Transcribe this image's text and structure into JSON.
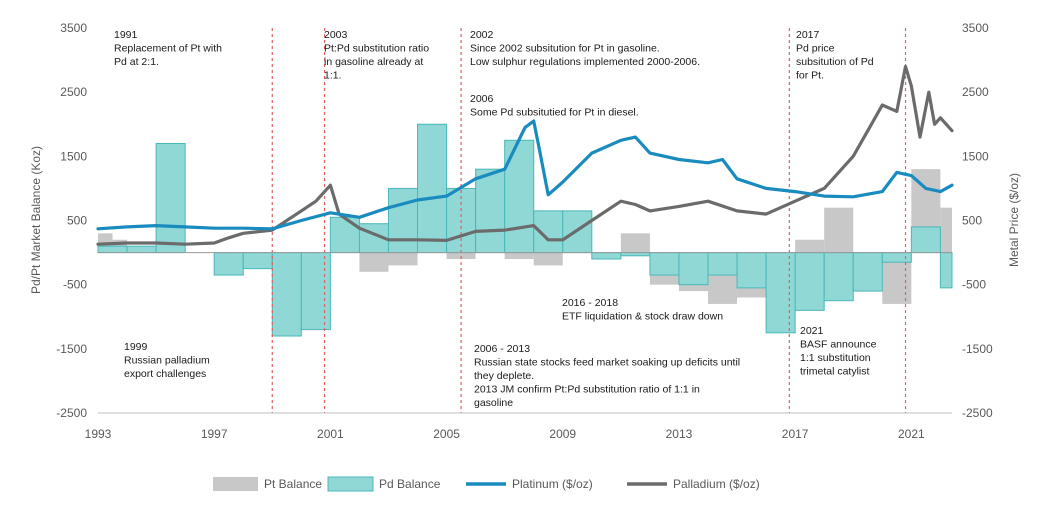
{
  "chart_data": {
    "type": "bar+line",
    "title": "",
    "xlabel": "",
    "ylabel_left": "Pd/Pt Market Balance (Koz)",
    "ylabel_right": "Metal Price ($/oz)",
    "x_range": [
      1993,
      2022.4
    ],
    "x_ticks": [
      "1993",
      "1997",
      "2001",
      "2005",
      "2009",
      "2013",
      "2017",
      "2021"
    ],
    "ylim_left": [
      -2500,
      3500
    ],
    "ylim_right": [
      -2500,
      3500
    ],
    "y_ticks_left": [
      "3500",
      "2500",
      "1500",
      "500",
      "-500",
      "-1500",
      "-2500"
    ],
    "y_ticks_right": [
      "3500",
      "2500",
      "1500",
      "500",
      "-500",
      "-1500",
      "-2500"
    ],
    "colors": {
      "pt_balance": "#c8c8c8",
      "pd_balance": "#8fd8d6",
      "pd_balance_edge": "#4ab8b8",
      "platinum": "#1a8bbf",
      "palladium": "#6b6b6b",
      "event_line": "#e06060"
    },
    "event_lines_x": [
      1999,
      2000.8,
      2005.5,
      2016.8,
      2020.8
    ],
    "legend": {
      "placement": "bottom",
      "items": [
        {
          "label": "Pt Balance",
          "kind": "area"
        },
        {
          "label": "Pd Balance",
          "kind": "area"
        },
        {
          "label": "Platinum ($/oz)",
          "kind": "line"
        },
        {
          "label": "Palladium ($/oz)",
          "kind": "line"
        }
      ]
    },
    "series": [
      {
        "name": "Pt Balance",
        "kind": "step-area",
        "x": [
          1993,
          1993.5,
          1994,
          1995,
          1996,
          1997,
          1998,
          1999,
          2000,
          2001,
          2002,
          2003,
          2004,
          2005,
          2006,
          2007,
          2008,
          2009,
          2010,
          2011,
          2012,
          2013,
          2014,
          2015,
          2016,
          2017,
          2018,
          2019,
          2020,
          2021,
          2022
        ],
        "values": [
          300,
          200,
          0,
          0,
          0,
          -100,
          -150,
          -200,
          0,
          300,
          -300,
          -200,
          300,
          -100,
          150,
          -100,
          -200,
          300,
          0,
          300,
          -500,
          -600,
          -800,
          -700,
          -400,
          200,
          700,
          -100,
          -800,
          1300,
          700
        ]
      },
      {
        "name": "Pd Balance",
        "kind": "step-area",
        "x": [
          1993,
          1994,
          1995,
          1996,
          1997,
          1998,
          1999,
          2000,
          2001,
          2002,
          2003,
          2004,
          2005,
          2006,
          2007,
          2008,
          2009,
          2010,
          2011,
          2012,
          2013,
          2014,
          2015,
          2016,
          2017,
          2018,
          2019,
          2020,
          2021,
          2022
        ],
        "values": [
          100,
          100,
          1700,
          0,
          -350,
          -250,
          -1300,
          -1200,
          550,
          450,
          1000,
          2000,
          1000,
          1300,
          1750,
          650,
          650,
          -100,
          -50,
          -350,
          -500,
          -350,
          -550,
          -1250,
          -900,
          -750,
          -600,
          -150,
          400,
          -550
        ]
      },
      {
        "name": "Platinum ($/oz)",
        "kind": "line",
        "x": [
          1993,
          1994,
          1995,
          1996,
          1997,
          1998,
          1999,
          2000,
          2001,
          2002,
          2003,
          2004,
          2005,
          2006,
          2007,
          2007.7,
          2008,
          2008.2,
          2008.5,
          2009,
          2010,
          2011,
          2011.5,
          2012,
          2013,
          2014,
          2014.5,
          2015,
          2016,
          2017,
          2018,
          2019,
          2020,
          2020.5,
          2021,
          2021.5,
          2022,
          2022.4
        ],
        "values": [
          370,
          400,
          420,
          400,
          380,
          380,
          370,
          500,
          620,
          550,
          700,
          820,
          880,
          1150,
          1300,
          1950,
          2050,
          1600,
          900,
          1100,
          1550,
          1750,
          1800,
          1550,
          1450,
          1400,
          1450,
          1150,
          1000,
          950,
          880,
          870,
          950,
          1250,
          1200,
          1000,
          950,
          1050
        ]
      },
      {
        "name": "Palladium ($/oz)",
        "kind": "line",
        "x": [
          1993,
          1994,
          1995,
          1996,
          1997,
          1997.5,
          1998,
          1999,
          2000,
          2000.5,
          2001,
          2001.3,
          2002,
          2003,
          2004,
          2005,
          2006,
          2007,
          2008,
          2008.5,
          2009,
          2010,
          2011,
          2011.5,
          2012,
          2013,
          2014,
          2015,
          2016,
          2017,
          2018,
          2019,
          2019.5,
          2020,
          2020.5,
          2020.8,
          2021,
          2021.3,
          2021.6,
          2021.8,
          2022,
          2022.4
        ],
        "values": [
          130,
          150,
          150,
          130,
          150,
          230,
          300,
          350,
          650,
          800,
          1050,
          600,
          380,
          200,
          200,
          190,
          330,
          350,
          420,
          200,
          200,
          500,
          800,
          750,
          650,
          720,
          800,
          650,
          600,
          800,
          1000,
          1500,
          1900,
          2300,
          2200,
          2900,
          2600,
          1800,
          2500,
          2000,
          2100,
          1900
        ]
      }
    ],
    "annotations": [
      {
        "lines": [
          "1991",
          "Replacement of Pt with",
          "Pd at 2:1."
        ]
      },
      {
        "lines": [
          "2003",
          "Pt:Pd substitution ratio",
          "in gasoline already at",
          "1:1."
        ]
      },
      {
        "lines": [
          "2002",
          "Since 2002 subsitution for Pt in gasoline.",
          "Low sulphur regulations implemented 2000-2006."
        ]
      },
      {
        "lines": [
          "2006",
          "Some Pd subsitutied for Pt in diesel."
        ]
      },
      {
        "lines": [
          "2017",
          "Pd price",
          "subsitution of Pd",
          "for Pt."
        ]
      },
      {
        "lines": [
          "2016 - 2018",
          "ETF liquidation & stock draw down"
        ]
      },
      {
        "lines": [
          "1999",
          "Russian palladium",
          "export challenges"
        ]
      },
      {
        "lines": [
          "2006 - 2013",
          "Russian state stocks feed market soaking up deficits until",
          "they deplete.",
          "2013 JM confirm Pt:Pd substitution ratio of 1:1 in",
          "gasoline"
        ]
      },
      {
        "lines": [
          "2021",
          "BASF announce",
          "1:1 substitution",
          "trimetal catylist"
        ]
      }
    ]
  }
}
